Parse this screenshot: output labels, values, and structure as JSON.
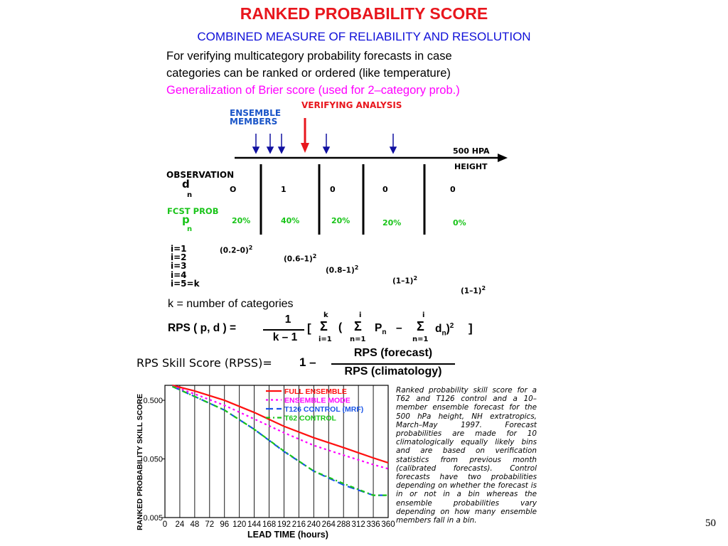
{
  "title": "RANKED PROBABILITY SCORE",
  "subtitle": "COMBINED MEASURE OF RELIABILITY AND RESOLUTION",
  "intro": {
    "line1": "For verifying multicategory probability forecasts in case",
    "line2": "categories can be ranked or ordered (like temperature)",
    "line3": "Generalization of Brier score (used for 2–category prob.)"
  },
  "colors": {
    "title": "#e8161d",
    "subtitle": "#1010d8",
    "magenta": "#ff00ff",
    "green": "#19c419",
    "blue": "#1a55c8"
  },
  "diagram": {
    "ensemble_label_1": "ENSEMBLE",
    "ensemble_label_2": "MEMBERS",
    "verifying_label": "VERIFYING ANALYSIS",
    "axis_label_1": "500 HPA",
    "axis_label_2": "HEIGHT",
    "observation_label": "OBSERVATION",
    "d_symbol": "d",
    "subscript_n": "n",
    "obs_values": [
      "O",
      "1",
      "0",
      "0",
      "0"
    ],
    "fcst_label": "FCST PROB",
    "p_symbol": "p",
    "prob_values": [
      "20%",
      "40%",
      "20%",
      "20%",
      "0%"
    ],
    "i_labels": [
      "i=1",
      "i=2",
      "i=3",
      "i=4",
      "i=5=k"
    ],
    "terms": [
      "(0.2–0)",
      "(0.6–1)",
      "(0.8–1)",
      "(1–1)",
      "(1–1)"
    ],
    "exponent": "2"
  },
  "formula": {
    "k_def": "k = number of categories",
    "rps_lhs": "RPS ( p, d )  =",
    "frac_num": "1",
    "frac_den": "k – 1",
    "bracket_open": "[",
    "sigma": "Σ",
    "sum1_top": "k",
    "sum1_bot": "i=1",
    "paren_open": "(",
    "sum2_top": "i",
    "sum2_bot": "n=1",
    "p_n": "P",
    "minus": "–",
    "sum3_top": "i",
    "sum3_bot": "n=1",
    "d_n": "d",
    "n_sub": "n",
    "closing": ")",
    "sq": "2",
    "bracket_close": "]",
    "rpss_lhs": "RPS Skill Score (RPSS)=",
    "one_minus": "1  –",
    "rpss_num": "RPS (forecast)",
    "rpss_den": "RPS (climatology)"
  },
  "chart_data": {
    "type": "line",
    "title": "",
    "xlabel": "LEAD TIME (hours)",
    "ylabel": "RANKED PROBABILITY SKILL SCORE",
    "x": [
      0,
      24,
      48,
      72,
      96,
      120,
      144,
      168,
      192,
      216,
      240,
      264,
      288,
      312,
      336,
      360
    ],
    "x_tick_labels": [
      "0",
      "24",
      "48",
      "72",
      "96",
      "120",
      "144",
      "168",
      "192",
      "216",
      "240",
      "264",
      "288",
      "312",
      "336",
      "360"
    ],
    "y_tick_labels": [
      "0.500",
      "0.050",
      "0.005"
    ],
    "yscale": "log",
    "ylim": [
      0.005,
      0.9
    ],
    "xlim": [
      0,
      360
    ],
    "grid": "vertical",
    "legend_position": "top-right",
    "series": [
      {
        "name": "FULL ENSEMBLE",
        "color": "#ff1010",
        "dash": "solid",
        "x": [
          12,
          48,
          96,
          144,
          192,
          240,
          288,
          336,
          360
        ],
        "y": [
          0.9,
          0.72,
          0.5,
          0.31,
          0.18,
          0.115,
          0.078,
          0.052,
          0.043
        ]
      },
      {
        "name": "ENSEMBLE MODE",
        "color": "#ff00ff",
        "dash": "dotted",
        "x": [
          12,
          48,
          96,
          144,
          192,
          240,
          288,
          336,
          360
        ],
        "y": [
          0.87,
          0.64,
          0.41,
          0.24,
          0.14,
          0.085,
          0.058,
          0.04,
          0.034
        ]
      },
      {
        "name": "T126 CONTROL (MRF)",
        "color": "#1a55e8",
        "dash": "dashed",
        "x": [
          12,
          48,
          96,
          144,
          192,
          240,
          288,
          336,
          360
        ],
        "y": [
          0.86,
          0.58,
          0.34,
          0.16,
          0.067,
          0.031,
          0.018,
          0.012,
          0.012
        ]
      },
      {
        "name": "T62 CONTROL",
        "color": "#19c419",
        "dash": "dashdot",
        "x": [
          12,
          48,
          96,
          144,
          192,
          240,
          288,
          336,
          360
        ],
        "y": [
          0.86,
          0.58,
          0.34,
          0.16,
          0.068,
          0.031,
          0.019,
          0.012,
          0.012
        ]
      }
    ]
  },
  "caption": "Ranked probability skill score for a T62 and T126 control and a 10–member ensemble forecast for the 500 hPa height, NH extratropics, March–May 1997. Forecast probabilities are made for 10 climatologically equally likely bins and are based on verification statistics from previous month (calibrated forecasts). Control forecasts have two probabilities depending on whether the forecast is in or not in a bin whereas the ensemble probabilities vary depending on how many ensemble members fall in a bin.",
  "page_number": "50"
}
